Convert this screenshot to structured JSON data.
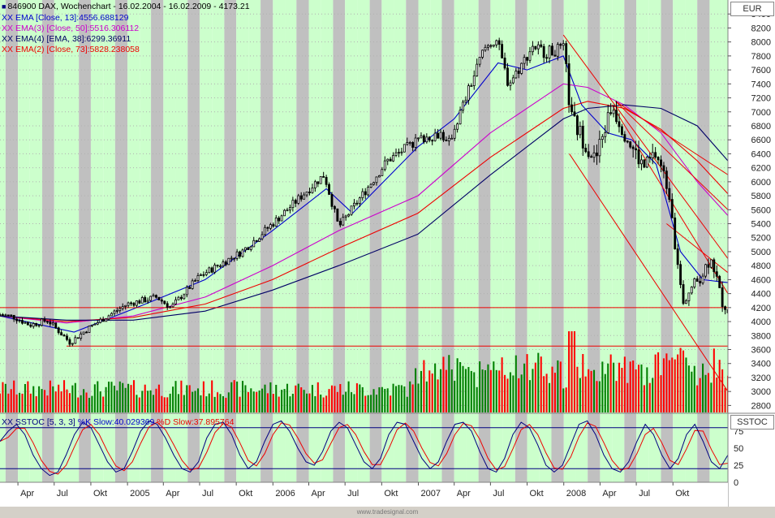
{
  "header": {
    "title": "846900  DAX, Wochenchart - 16.02.2004 - 16.02.2009 - 4173.21"
  },
  "legends": [
    {
      "mark": "XX",
      "label": "EMA [Close, 13]:4556.688129",
      "color": "#0000cc"
    },
    {
      "mark": "XX",
      "label": "EMA(3) [Close, 50]:5516.306112",
      "color": "#cc00cc"
    },
    {
      "mark": "XX",
      "label": "EMA(4) [EMA, 38]:6299.36911",
      "color": "#000066"
    },
    {
      "mark": "XX",
      "label": "EMA(2) [Close, 73]:5828.238058",
      "color": "#ee0000"
    }
  ],
  "price_axis_title": "EUR",
  "stoch": {
    "label_pre": "XX SSTOC [5, 3, 3] ",
    "k_label": "%K Slow:40.029369",
    "d_label": " %D Slow:37.895764",
    "axis_title": "SSTOC",
    "ticks": [
      "75",
      "50",
      "25",
      "0"
    ]
  },
  "watermark": "www.tradesignal.com",
  "colors": {
    "band_green": "#ccffcc",
    "band_gray": "#c0c0c0",
    "up": "#008000",
    "down": "#ff0000",
    "candle": "#000000"
  },
  "chart_data": {
    "type": "candlestick",
    "title": "846900  DAX, Wochenchart - 16.02.2004 - 16.02.2009 - 4173.21",
    "y_ticks": [
      "8400",
      "8200",
      "8000",
      "7800",
      "7600",
      "7400",
      "7200",
      "7000",
      "6800",
      "6600",
      "6400",
      "6200",
      "6000",
      "5800",
      "5600",
      "5400",
      "5200",
      "5000",
      "4800",
      "4600",
      "4400",
      "4200",
      "4000",
      "3800",
      "3600",
      "3400",
      "3200",
      "3000",
      "2800"
    ],
    "ylim": [
      2700,
      8600
    ],
    "x_ticks": [
      "Apr",
      "Jul",
      "Okt",
      "2005",
      "Apr",
      "Jul",
      "Okt",
      "2006",
      "Apr",
      "Jul",
      "Okt",
      "2007",
      "Apr",
      "Jul",
      "Okt",
      "2008",
      "Apr",
      "Jul",
      "Okt"
    ],
    "x_tick_dates": [
      "2004-04-01",
      "2004-07-01",
      "2004-10-01",
      "2005-01-01",
      "2005-04-01",
      "2005-07-01",
      "2005-10-01",
      "2006-01-01",
      "2006-04-01",
      "2006-07-01",
      "2006-10-01",
      "2007-01-01",
      "2007-04-01",
      "2007-07-01",
      "2007-10-01",
      "2008-01-01",
      "2008-04-01",
      "2008-07-01",
      "2008-10-01"
    ],
    "xlim": [
      "2004-02-16",
      "2009-02-16"
    ],
    "price_path": [
      [
        "2004-02-16",
        4100
      ],
      [
        "2004-03-20",
        4070
      ],
      [
        "2004-05-01",
        3950
      ],
      [
        "2004-06-15",
        4020
      ],
      [
        "2004-08-10",
        3700
      ],
      [
        "2004-10-01",
        3930
      ],
      [
        "2004-12-31",
        4250
      ],
      [
        "2005-03-15",
        4350
      ],
      [
        "2005-04-20",
        4200
      ],
      [
        "2005-07-01",
        4650
      ],
      [
        "2005-10-15",
        5000
      ],
      [
        "2005-12-31",
        5400
      ],
      [
        "2006-04-20",
        6000
      ],
      [
        "2006-05-10",
        6100
      ],
      [
        "2006-06-15",
        5350
      ],
      [
        "2006-07-30",
        5700
      ],
      [
        "2006-10-15",
        6300
      ],
      [
        "2006-12-31",
        6600
      ],
      [
        "2007-03-01",
        6700
      ],
      [
        "2007-03-15",
        6500
      ],
      [
        "2007-06-15",
        7900
      ],
      [
        "2007-07-15",
        8050
      ],
      [
        "2007-08-15",
        7400
      ],
      [
        "2007-09-20",
        7700
      ],
      [
        "2007-10-15",
        7950
      ],
      [
        "2007-11-15",
        7850
      ],
      [
        "2007-12-31",
        7900
      ],
      [
        "2008-01-20",
        6900
      ],
      [
        "2008-03-01",
        6500
      ],
      [
        "2008-03-20",
        6300
      ],
      [
        "2008-05-01",
        7100
      ],
      [
        "2008-06-20",
        6500
      ],
      [
        "2008-07-20",
        6200
      ],
      [
        "2008-08-20",
        6400
      ],
      [
        "2008-09-25",
        5800
      ],
      [
        "2008-10-15",
        4600
      ],
      [
        "2008-10-25",
        4300
      ],
      [
        "2008-11-20",
        4500
      ],
      [
        "2008-12-15",
        4700
      ],
      [
        "2009-01-05",
        4950
      ],
      [
        "2009-01-31",
        4300
      ],
      [
        "2009-02-16",
        4173.21
      ]
    ],
    "ema_series": [
      {
        "name": "EMA [Close, 13]",
        "color": "#0000cc",
        "points": [
          [
            "2004-02-16",
            4080
          ],
          [
            "2004-08-20",
            3850
          ],
          [
            "2005-01-15",
            4180
          ],
          [
            "2005-07-15",
            4600
          ],
          [
            "2005-12-31",
            5300
          ],
          [
            "2006-05-15",
            5900
          ],
          [
            "2006-07-20",
            5550
          ],
          [
            "2006-12-31",
            6500
          ],
          [
            "2007-04-01",
            6900
          ],
          [
            "2007-07-20",
            7700
          ],
          [
            "2007-10-01",
            7600
          ],
          [
            "2007-12-31",
            7800
          ],
          [
            "2008-02-15",
            7100
          ],
          [
            "2008-04-20",
            6700
          ],
          [
            "2008-06-20",
            6600
          ],
          [
            "2008-08-20",
            6250
          ],
          [
            "2008-10-20",
            5000
          ],
          [
            "2008-12-15",
            4600
          ],
          [
            "2009-02-16",
            4556.69
          ]
        ]
      },
      {
        "name": "EMA(3) [Close, 50]",
        "color": "#cc00cc",
        "points": [
          [
            "2004-02-16",
            4080
          ],
          [
            "2004-08-01",
            3980
          ],
          [
            "2005-01-15",
            4080
          ],
          [
            "2005-07-15",
            4350
          ],
          [
            "2005-12-31",
            4800
          ],
          [
            "2006-06-15",
            5300
          ],
          [
            "2006-12-31",
            5800
          ],
          [
            "2007-07-01",
            6700
          ],
          [
            "2007-12-31",
            7400
          ],
          [
            "2008-03-01",
            7350
          ],
          [
            "2008-06-01",
            7100
          ],
          [
            "2008-09-01",
            6700
          ],
          [
            "2008-12-01",
            6000
          ],
          [
            "2009-02-16",
            5516.31
          ]
        ]
      },
      {
        "name": "EMA(2) [Close, 73]",
        "color": "#ee0000",
        "points": [
          [
            "2004-02-16",
            4080
          ],
          [
            "2004-08-01",
            4000
          ],
          [
            "2005-01-15",
            4060
          ],
          [
            "2005-07-15",
            4250
          ],
          [
            "2005-12-31",
            4600
          ],
          [
            "2006-06-15",
            5050
          ],
          [
            "2006-12-31",
            5550
          ],
          [
            "2007-07-01",
            6350
          ],
          [
            "2007-12-31",
            7050
          ],
          [
            "2008-03-01",
            7150
          ],
          [
            "2008-06-01",
            7050
          ],
          [
            "2008-09-01",
            6750
          ],
          [
            "2008-12-01",
            6300
          ],
          [
            "2009-02-16",
            5828.24
          ]
        ]
      },
      {
        "name": "EMA(4) [EMA, 38]",
        "color": "#000066",
        "points": [
          [
            "2004-02-16",
            4080
          ],
          [
            "2004-08-01",
            4020
          ],
          [
            "2005-01-15",
            4020
          ],
          [
            "2005-07-15",
            4150
          ],
          [
            "2005-12-31",
            4450
          ],
          [
            "2006-06-15",
            4800
          ],
          [
            "2006-12-31",
            5250
          ],
          [
            "2007-07-01",
            6100
          ],
          [
            "2007-12-31",
            6900
          ],
          [
            "2008-03-01",
            7050
          ],
          [
            "2008-06-01",
            7100
          ],
          [
            "2008-09-01",
            7050
          ],
          [
            "2008-12-01",
            6800
          ],
          [
            "2009-02-16",
            6299.37
          ]
        ]
      }
    ],
    "trend_lines": [
      {
        "from": [
          "2004-02-16",
          4200
        ],
        "to": [
          "2009-02-16",
          4200
        ]
      },
      {
        "from": [
          "2004-08-01",
          3650
        ],
        "to": [
          "2009-02-16",
          3650
        ]
      },
      {
        "from": [
          "2007-12-31",
          8100
        ],
        "to": [
          "2009-02-16",
          4900
        ]
      },
      {
        "from": [
          "2008-01-15",
          6400
        ],
        "to": [
          "2009-02-16",
          3000
        ]
      },
      {
        "from": [
          "2008-05-01",
          7100
        ],
        "to": [
          "2009-02-16",
          4400
        ]
      },
      {
        "from": [
          "2008-05-10",
          7150
        ],
        "to": [
          "2009-02-16",
          5600
        ]
      },
      {
        "from": [
          "2008-05-10",
          7150
        ],
        "to": [
          "2009-02-16",
          6100
        ]
      },
      {
        "from": [
          "2008-09-15",
          5400
        ],
        "to": [
          "2009-02-16",
          4700
        ]
      }
    ],
    "stochastic": {
      "k_last": 40.029369,
      "d_last": 37.895764,
      "upper_line": 80,
      "lower_line": 20,
      "ylim": [
        0,
        100
      ],
      "k_path": [
        60,
        75,
        85,
        70,
        40,
        20,
        10,
        15,
        40,
        70,
        88,
        80,
        55,
        30,
        15,
        20,
        45,
        75,
        90,
        85,
        65,
        40,
        20,
        15,
        30,
        65,
        85,
        88,
        70,
        40,
        20,
        30,
        60,
        85,
        90,
        75,
        50,
        30,
        25,
        45,
        75,
        88,
        80,
        55,
        30,
        20,
        35,
        70,
        88,
        85,
        60,
        35,
        20,
        30,
        60,
        85,
        88,
        75,
        45,
        20,
        15,
        35,
        70,
        88,
        80,
        55,
        25,
        15,
        25,
        55,
        85,
        90,
        70,
        40,
        20,
        15,
        30,
        60,
        85,
        70,
        40,
        20,
        35,
        70,
        85,
        60,
        30,
        20,
        40
      ]
    }
  }
}
